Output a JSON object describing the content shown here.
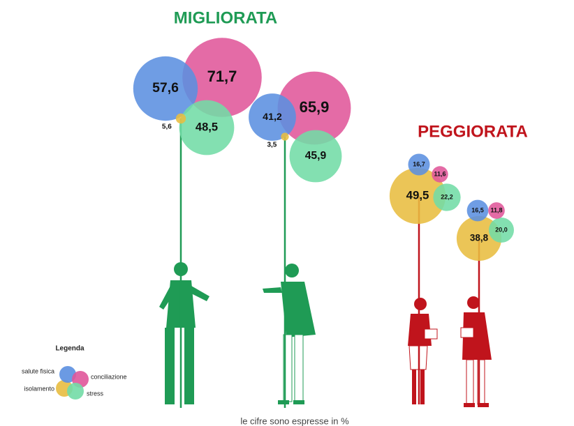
{
  "chart_data": {
    "type": "bubble-cluster",
    "series": [
      {
        "name": "salute fisica",
        "color": "#5b8fe0"
      },
      {
        "name": "conciliazione",
        "color": "#e0579a"
      },
      {
        "name": "stress",
        "color": "#72dca6"
      },
      {
        "name": "isolamento",
        "color": "#e8bd40"
      }
    ],
    "groups": [
      {
        "title": "MIGLIORATA",
        "color": "#1f9b55",
        "people": [
          {
            "values": [
              57.6,
              71.7,
              48.5,
              5.6
            ],
            "value_labels": [
              "57,6",
              "71,7",
              "48,5",
              "5,6"
            ]
          },
          {
            "values": [
              41.2,
              65.9,
              45.9,
              3.5
            ],
            "value_labels": [
              "41,2",
              "65,9",
              "45,9",
              "3,5"
            ]
          }
        ]
      },
      {
        "title": "PEGGIORATA",
        "color": "#c0141c",
        "people": [
          {
            "values": [
              16.7,
              11.6,
              22.2,
              49.5
            ],
            "value_labels": [
              "16,7",
              "11,6",
              "22,2",
              "49,5"
            ]
          },
          {
            "values": [
              16.5,
              11.8,
              20.0,
              38.8
            ],
            "value_labels": [
              "16,5",
              "11,8",
              "20,0",
              "38,8"
            ]
          }
        ]
      }
    ],
    "legend_title": "Legenda",
    "note": "le cifre sono espresse in %"
  }
}
